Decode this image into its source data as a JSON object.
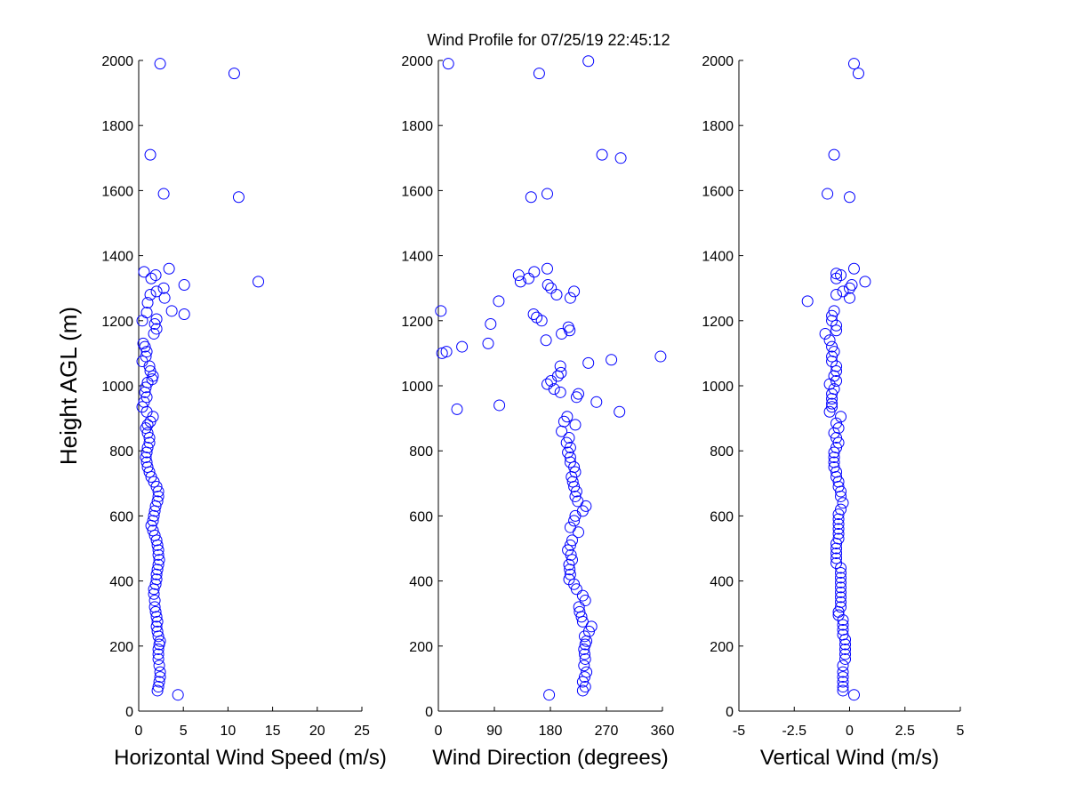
{
  "title": "Wind Profile for  07/25/19 22:45:12",
  "colors": {
    "marker": "#0000ff",
    "axis": "#000000",
    "background": "#ffffff"
  },
  "chart_data": [
    {
      "type": "scatter",
      "xlabel": "Horizontal Wind Speed (m/s)",
      "ylabel": "Height AGL (m)",
      "xlim": [
        0,
        25
      ],
      "ylim": [
        0,
        2000
      ],
      "xticks": [
        "0",
        "5",
        "10",
        "15",
        "20",
        "25"
      ],
      "yticks": [
        "0",
        "200",
        "400",
        "600",
        "800",
        "1000",
        "1200",
        "1400",
        "1600",
        "1800",
        "2000"
      ],
      "grid": false,
      "marker": "open-circle",
      "points": [
        [
          4.4,
          50
        ],
        [
          2.1,
          63
        ],
        [
          2.2,
          75
        ],
        [
          2.3,
          90
        ],
        [
          2.4,
          105
        ],
        [
          2.4,
          120
        ],
        [
          2.3,
          140
        ],
        [
          2.2,
          160
        ],
        [
          2.2,
          175
        ],
        [
          2.2,
          190
        ],
        [
          2.3,
          205
        ],
        [
          2.4,
          215
        ],
        [
          2.2,
          230
        ],
        [
          2.1,
          245
        ],
        [
          2.0,
          260
        ],
        [
          2.1,
          275
        ],
        [
          2.0,
          290
        ],
        [
          1.9,
          305
        ],
        [
          1.8,
          320
        ],
        [
          1.8,
          340
        ],
        [
          1.7,
          360
        ],
        [
          1.7,
          375
        ],
        [
          1.9,
          390
        ],
        [
          2.0,
          405
        ],
        [
          2.0,
          420
        ],
        [
          2.1,
          435
        ],
        [
          2.2,
          450
        ],
        [
          2.3,
          465
        ],
        [
          2.2,
          480
        ],
        [
          2.2,
          495
        ],
        [
          2.1,
          510
        ],
        [
          2.0,
          525
        ],
        [
          1.8,
          540
        ],
        [
          1.6,
          555
        ],
        [
          1.4,
          570
        ],
        [
          1.6,
          585
        ],
        [
          1.7,
          600
        ],
        [
          1.8,
          615
        ],
        [
          1.9,
          630
        ],
        [
          2.1,
          645
        ],
        [
          2.2,
          660
        ],
        [
          2.2,
          675
        ],
        [
          2.0,
          690
        ],
        [
          1.7,
          705
        ],
        [
          1.4,
          720
        ],
        [
          1.2,
          735
        ],
        [
          1.0,
          750
        ],
        [
          0.9,
          765
        ],
        [
          0.8,
          780
        ],
        [
          0.9,
          795
        ],
        [
          1.0,
          810
        ],
        [
          1.2,
          825
        ],
        [
          1.2,
          840
        ],
        [
          1.0,
          855
        ],
        [
          0.8,
          870
        ],
        [
          1.0,
          880
        ],
        [
          1.3,
          890
        ],
        [
          1.6,
          905
        ],
        [
          0.9,
          920
        ],
        [
          0.4,
          935
        ],
        [
          0.6,
          950
        ],
        [
          0.9,
          965
        ],
        [
          0.7,
          980
        ],
        [
          0.8,
          995
        ],
        [
          1.0,
          1010
        ],
        [
          1.5,
          1020
        ],
        [
          1.6,
          1030
        ],
        [
          1.3,
          1045
        ],
        [
          1.2,
          1060
        ],
        [
          0.4,
          1075
        ],
        [
          0.8,
          1090
        ],
        [
          0.9,
          1105
        ],
        [
          0.7,
          1120
        ],
        [
          0.5,
          1130
        ],
        [
          1.7,
          1160
        ],
        [
          2.0,
          1175
        ],
        [
          1.8,
          1190
        ],
        [
          2.0,
          1205
        ],
        [
          0.4,
          1200
        ],
        [
          0.9,
          1225
        ],
        [
          5.1,
          1220
        ],
        [
          3.7,
          1230
        ],
        [
          1.0,
          1255
        ],
        [
          2.9,
          1270
        ],
        [
          1.3,
          1280
        ],
        [
          2.0,
          1290
        ],
        [
          2.8,
          1300
        ],
        [
          5.1,
          1310
        ],
        [
          13.4,
          1320
        ],
        [
          1.4,
          1330
        ],
        [
          1.9,
          1340
        ],
        [
          0.6,
          1350
        ],
        [
          3.4,
          1360
        ],
        [
          2.8,
          1590
        ],
        [
          11.2,
          1580
        ],
        [
          1.3,
          1710
        ],
        [
          10.7,
          1960
        ],
        [
          2.4,
          1990
        ]
      ]
    },
    {
      "type": "scatter",
      "xlabel": "Wind Direction (degrees)",
      "ylabel": "",
      "xlim": [
        0,
        360
      ],
      "ylim": [
        0,
        2000
      ],
      "xticks": [
        "0",
        "90",
        "180",
        "270",
        "360"
      ],
      "yticks": [
        "0",
        "200",
        "400",
        "600",
        "800",
        "1000",
        "1200",
        "1400",
        "1600",
        "1800",
        "2000"
      ],
      "grid": false,
      "marker": "open-circle",
      "points": [
        [
          178,
          50
        ],
        [
          232,
          63
        ],
        [
          236,
          75
        ],
        [
          232,
          90
        ],
        [
          235,
          105
        ],
        [
          238,
          120
        ],
        [
          234,
          140
        ],
        [
          236,
          160
        ],
        [
          235,
          175
        ],
        [
          234,
          190
        ],
        [
          236,
          205
        ],
        [
          238,
          215
        ],
        [
          235,
          230
        ],
        [
          242,
          245
        ],
        [
          246,
          260
        ],
        [
          232,
          275
        ],
        [
          230,
          290
        ],
        [
          227,
          305
        ],
        [
          226,
          320
        ],
        [
          236,
          340
        ],
        [
          232,
          355
        ],
        [
          222,
          375
        ],
        [
          218,
          390
        ],
        [
          210,
          405
        ],
        [
          212,
          420
        ],
        [
          211,
          435
        ],
        [
          210,
          450
        ],
        [
          215,
          465
        ],
        [
          213,
          480
        ],
        [
          208,
          495
        ],
        [
          212,
          510
        ],
        [
          215,
          525
        ],
        [
          225,
          550
        ],
        [
          212,
          565
        ],
        [
          218,
          585
        ],
        [
          220,
          600
        ],
        [
          232,
          615
        ],
        [
          237,
          630
        ],
        [
          224,
          645
        ],
        [
          220,
          660
        ],
        [
          222,
          675
        ],
        [
          218,
          690
        ],
        [
          216,
          705
        ],
        [
          214,
          720
        ],
        [
          220,
          735
        ],
        [
          218,
          750
        ],
        [
          212,
          765
        ],
        [
          212,
          780
        ],
        [
          208,
          795
        ],
        [
          212,
          810
        ],
        [
          206,
          825
        ],
        [
          210,
          840
        ],
        [
          198,
          860
        ],
        [
          220,
          880
        ],
        [
          202,
          890
        ],
        [
          207,
          905
        ],
        [
          291,
          920
        ],
        [
          30,
          928
        ],
        [
          98,
          940
        ],
        [
          254,
          950
        ],
        [
          222,
          965
        ],
        [
          225,
          975
        ],
        [
          196,
          980
        ],
        [
          186,
          990
        ],
        [
          175,
          1005
        ],
        [
          181,
          1015
        ],
        [
          192,
          1030
        ],
        [
          197,
          1040
        ],
        [
          196,
          1060
        ],
        [
          241,
          1070
        ],
        [
          278,
          1080
        ],
        [
          357,
          1090
        ],
        [
          6,
          1100
        ],
        [
          13,
          1105
        ],
        [
          38,
          1120
        ],
        [
          80,
          1130
        ],
        [
          173,
          1140
        ],
        [
          198,
          1160
        ],
        [
          211,
          1170
        ],
        [
          209,
          1180
        ],
        [
          84,
          1190
        ],
        [
          166,
          1200
        ],
        [
          158,
          1210
        ],
        [
          153,
          1220
        ],
        [
          4,
          1230
        ],
        [
          97,
          1260
        ],
        [
          212,
          1270
        ],
        [
          190,
          1280
        ],
        [
          218,
          1290
        ],
        [
          181,
          1300
        ],
        [
          176,
          1310
        ],
        [
          132,
          1320
        ],
        [
          129,
          1340
        ],
        [
          145,
          1330
        ],
        [
          154,
          1350
        ],
        [
          175,
          1360
        ],
        [
          149,
          1580
        ],
        [
          175,
          1590
        ],
        [
          263,
          1710
        ],
        [
          293,
          1700
        ],
        [
          162,
          1960
        ],
        [
          16,
          1990
        ],
        [
          241,
          1998
        ]
      ]
    },
    {
      "type": "scatter",
      "xlabel": "Vertical Wind (m/s)",
      "ylabel": "",
      "xlim": [
        -5,
        5
      ],
      "ylim": [
        0,
        2000
      ],
      "xticks": [
        "-5",
        "-2.5",
        "0",
        "2.5",
        "5"
      ],
      "yticks": [
        "0",
        "200",
        "400",
        "600",
        "800",
        "1000",
        "1200",
        "1400",
        "1600",
        "1800",
        "2000"
      ],
      "grid": false,
      "marker": "open-circle",
      "points": [
        [
          0.2,
          50
        ],
        [
          -0.3,
          63
        ],
        [
          -0.3,
          75
        ],
        [
          -0.3,
          90
        ],
        [
          -0.3,
          105
        ],
        [
          -0.3,
          120
        ],
        [
          -0.3,
          140
        ],
        [
          -0.2,
          160
        ],
        [
          -0.2,
          175
        ],
        [
          -0.2,
          190
        ],
        [
          -0.2,
          205
        ],
        [
          -0.2,
          220
        ],
        [
          -0.3,
          235
        ],
        [
          -0.3,
          250
        ],
        [
          -0.3,
          265
        ],
        [
          -0.3,
          280
        ],
        [
          -0.5,
          295
        ],
        [
          -0.5,
          305
        ],
        [
          -0.4,
          320
        ],
        [
          -0.4,
          335
        ],
        [
          -0.4,
          350
        ],
        [
          -0.4,
          365
        ],
        [
          -0.4,
          380
        ],
        [
          -0.4,
          395
        ],
        [
          -0.4,
          410
        ],
        [
          -0.4,
          425
        ],
        [
          -0.4,
          440
        ],
        [
          -0.6,
          455
        ],
        [
          -0.6,
          470
        ],
        [
          -0.6,
          485
        ],
        [
          -0.6,
          500
        ],
        [
          -0.6,
          515
        ],
        [
          -0.5,
          530
        ],
        [
          -0.5,
          545
        ],
        [
          -0.5,
          560
        ],
        [
          -0.5,
          575
        ],
        [
          -0.5,
          590
        ],
        [
          -0.5,
          605
        ],
        [
          -0.4,
          620
        ],
        [
          -0.3,
          640
        ],
        [
          -0.4,
          660
        ],
        [
          -0.4,
          675
        ],
        [
          -0.5,
          690
        ],
        [
          -0.5,
          705
        ],
        [
          -0.6,
          720
        ],
        [
          -0.6,
          735
        ],
        [
          -0.7,
          750
        ],
        [
          -0.7,
          765
        ],
        [
          -0.7,
          780
        ],
        [
          -0.7,
          795
        ],
        [
          -0.6,
          810
        ],
        [
          -0.5,
          825
        ],
        [
          -0.6,
          840
        ],
        [
          -0.7,
          855
        ],
        [
          -0.5,
          870
        ],
        [
          -0.6,
          885
        ],
        [
          -0.4,
          905
        ],
        [
          -0.9,
          920
        ],
        [
          -0.8,
          935
        ],
        [
          -0.8,
          945
        ],
        [
          -0.8,
          960
        ],
        [
          -0.8,
          975
        ],
        [
          -0.7,
          990
        ],
        [
          -0.9,
          1005
        ],
        [
          -0.6,
          1015
        ],
        [
          -0.7,
          1030
        ],
        [
          -0.6,
          1045
        ],
        [
          -0.6,
          1060
        ],
        [
          -0.8,
          1075
        ],
        [
          -0.8,
          1090
        ],
        [
          -0.7,
          1105
        ],
        [
          -0.8,
          1120
        ],
        [
          -0.9,
          1140
        ],
        [
          -1.1,
          1160
        ],
        [
          -0.6,
          1170
        ],
        [
          -0.6,
          1185
        ],
        [
          -0.8,
          1200
        ],
        [
          -0.8,
          1215
        ],
        [
          -0.7,
          1230
        ],
        [
          -1.9,
          1260
        ],
        [
          0.0,
          1270
        ],
        [
          -0.6,
          1280
        ],
        [
          -0.3,
          1290
        ],
        [
          0.0,
          1300
        ],
        [
          0.1,
          1310
        ],
        [
          0.7,
          1320
        ],
        [
          -0.6,
          1330
        ],
        [
          -0.4,
          1340
        ],
        [
          -0.6,
          1345
        ],
        [
          0.2,
          1360
        ],
        [
          -1.0,
          1590
        ],
        [
          0.0,
          1580
        ],
        [
          -0.7,
          1710
        ],
        [
          0.4,
          1960
        ],
        [
          0.2,
          1990
        ]
      ]
    }
  ]
}
